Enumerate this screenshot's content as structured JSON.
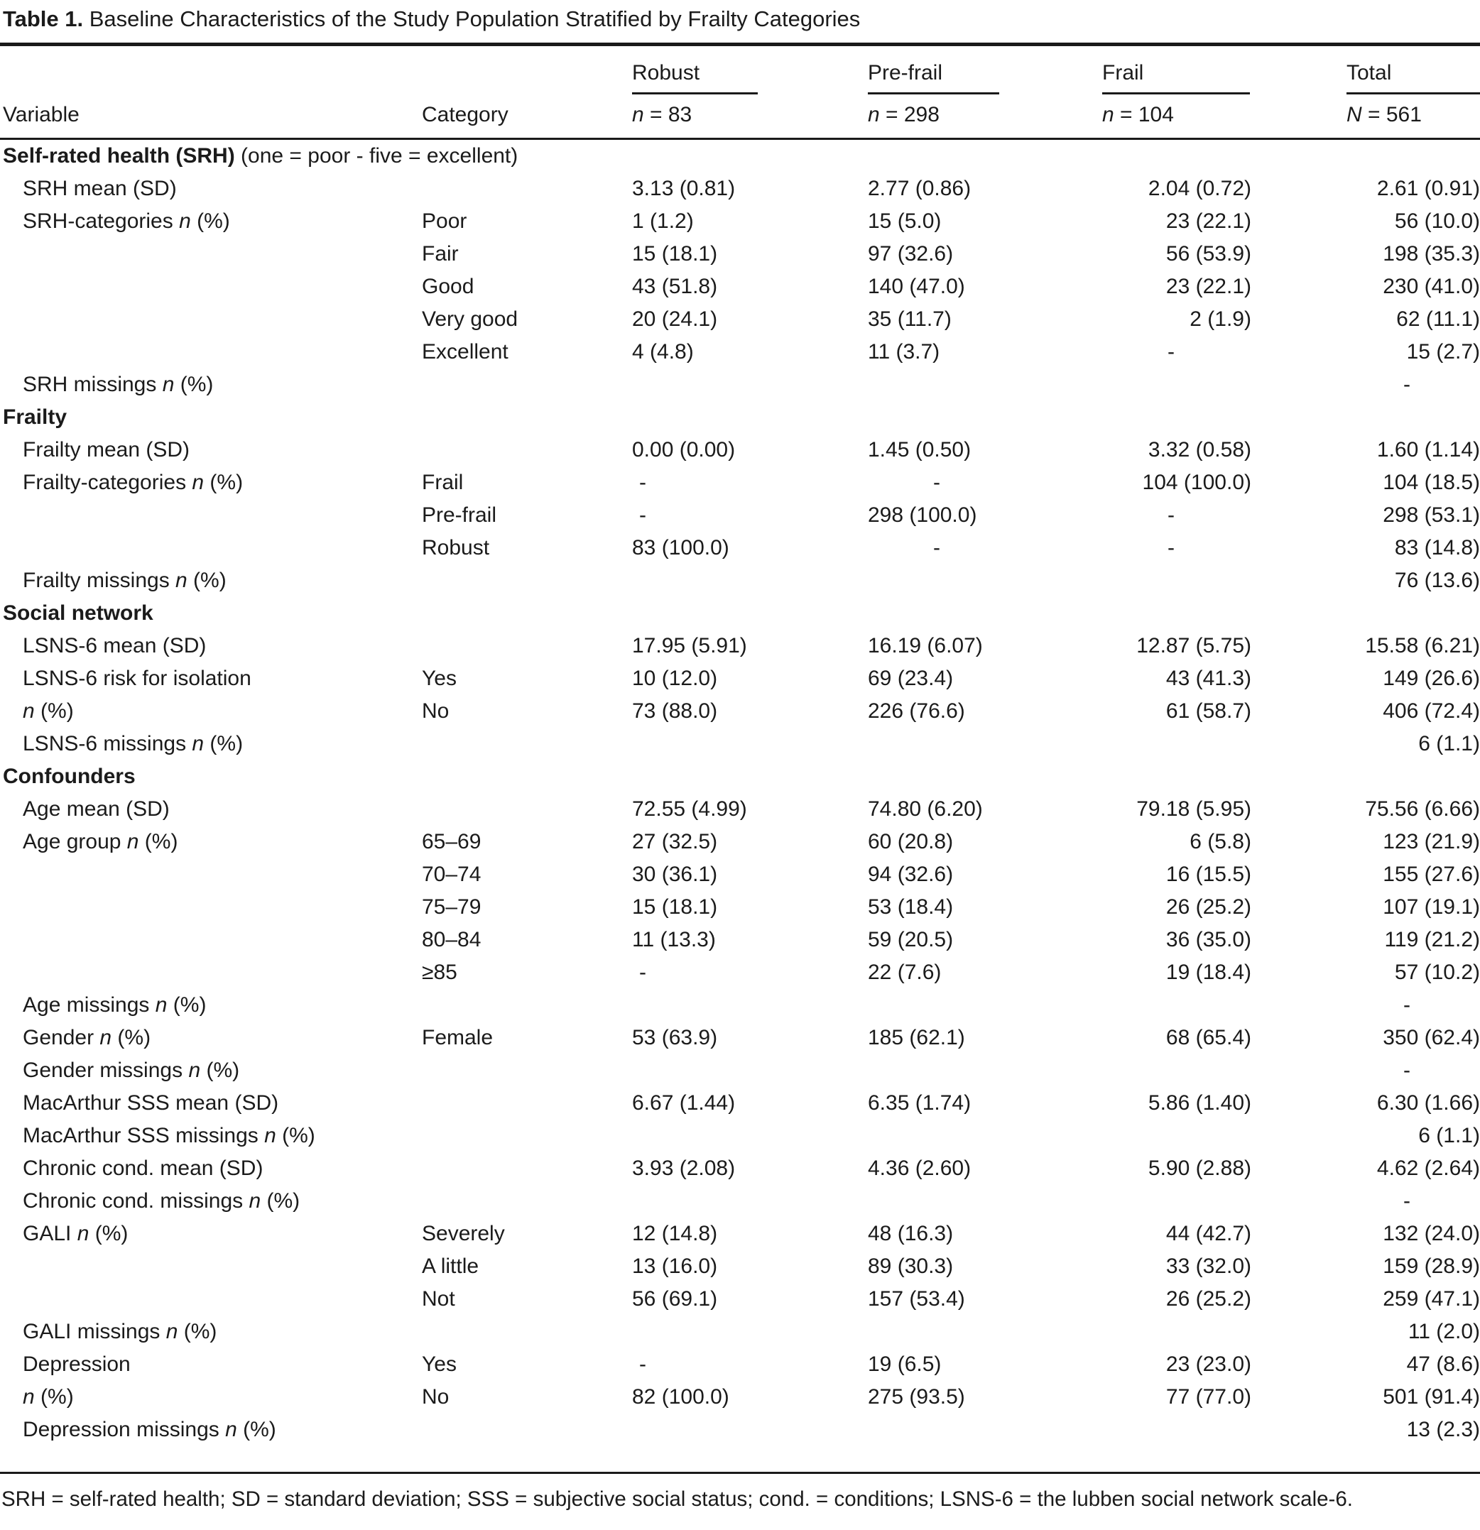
{
  "title": {
    "label": "Table 1.",
    "text": " Baseline Characteristics of the Study Population Stratified by Frailty Categories"
  },
  "table": {
    "col_headers": {
      "variable": "Variable",
      "category": "Category"
    },
    "group_headers": [
      {
        "label": "Robust",
        "n": "n = 83"
      },
      {
        "label": "Pre-frail",
        "n": "n = 298"
      },
      {
        "label": "Frail",
        "n": "n = 104"
      },
      {
        "label": "Total",
        "n": "N = 561"
      }
    ],
    "rows": [
      {
        "type": "section",
        "label": "Self-rated health (SRH)",
        "suffix": " (one = poor - five = excellent)"
      },
      {
        "type": "data",
        "variable": "SRH mean (SD)",
        "category": "",
        "values": [
          "3.13 (0.81)",
          "2.77 (0.86)",
          "2.04 (0.72)",
          "2.61 (0.91)"
        ]
      },
      {
        "type": "data",
        "variable": "SRH-categories n (%)",
        "category": "Poor",
        "values": [
          "1 (1.2)",
          "15 (5.0)",
          "23 (22.1)",
          "56 (10.0)"
        ]
      },
      {
        "type": "data",
        "variable": "",
        "category": "Fair",
        "values": [
          "15 (18.1)",
          "97 (32.6)",
          "56 (53.9)",
          "198 (35.3)"
        ]
      },
      {
        "type": "data",
        "variable": "",
        "category": "Good",
        "values": [
          "43 (51.8)",
          "140 (47.0)",
          "23 (22.1)",
          "230 (41.0)"
        ]
      },
      {
        "type": "data",
        "variable": "",
        "category": "Very good",
        "values": [
          "20 (24.1)",
          "35 (11.7)",
          "2 (1.9)",
          "62 (11.1)"
        ]
      },
      {
        "type": "data",
        "variable": "",
        "category": "Excellent",
        "values": [
          "4 (4.8)",
          "11 (3.7)",
          "-",
          "15 (2.7)"
        ]
      },
      {
        "type": "data",
        "variable": "SRH missings n (%)",
        "category": "",
        "values": [
          "",
          "",
          "",
          "-"
        ]
      },
      {
        "type": "section",
        "label": "Frailty",
        "suffix": ""
      },
      {
        "type": "data",
        "variable": "Frailty mean (SD)",
        "category": "",
        "values": [
          "0.00 (0.00)",
          "1.45 (0.50)",
          "3.32 (0.58)",
          "1.60 (1.14)"
        ]
      },
      {
        "type": "data",
        "variable": "Frailty-categories n (%)",
        "category": "Frail",
        "values": [
          "-",
          "-",
          "104 (100.0)",
          "104 (18.5)"
        ]
      },
      {
        "type": "data",
        "variable": "",
        "category": "Pre-frail",
        "values": [
          "-",
          "298 (100.0)",
          "-",
          "298 (53.1)"
        ]
      },
      {
        "type": "data",
        "variable": "",
        "category": "Robust",
        "values": [
          "83 (100.0)",
          "-",
          "-",
          "83 (14.8)"
        ]
      },
      {
        "type": "data",
        "variable": "Frailty missings n (%)",
        "category": "",
        "values": [
          "",
          "",
          "",
          "76 (13.6)"
        ]
      },
      {
        "type": "section",
        "label": "Social network",
        "suffix": ""
      },
      {
        "type": "data",
        "variable": "LSNS-6 mean (SD)",
        "category": "",
        "values": [
          "17.95 (5.91)",
          "16.19 (6.07)",
          "12.87 (5.75)",
          "15.58 (6.21)"
        ]
      },
      {
        "type": "data",
        "variable": "LSNS-6 risk for isolation",
        "category": "Yes",
        "values": [
          "10 (12.0)",
          "69 (23.4)",
          "43 (41.3)",
          "149 (26.6)"
        ]
      },
      {
        "type": "data",
        "variable": "n (%)",
        "category": "No",
        "values": [
          "73 (88.0)",
          "226 (76.6)",
          "61 (58.7)",
          "406 (72.4)"
        ]
      },
      {
        "type": "data",
        "variable": "LSNS-6 missings n (%)",
        "category": "",
        "values": [
          "",
          "",
          "",
          "6 (1.1)"
        ]
      },
      {
        "type": "section",
        "label": "Confounders",
        "suffix": ""
      },
      {
        "type": "data",
        "variable": "Age mean (SD)",
        "category": "",
        "values": [
          "72.55 (4.99)",
          "74.80 (6.20)",
          "79.18 (5.95)",
          "75.56 (6.66)"
        ]
      },
      {
        "type": "data",
        "variable": "Age group n (%)",
        "category": "65–69",
        "values": [
          "27 (32.5)",
          "60 (20.8)",
          "6 (5.8)",
          "123 (21.9)"
        ]
      },
      {
        "type": "data",
        "variable": "",
        "category": "70–74",
        "values": [
          "30 (36.1)",
          "94 (32.6)",
          "16 (15.5)",
          "155 (27.6)"
        ]
      },
      {
        "type": "data",
        "variable": "",
        "category": "75–79",
        "values": [
          "15 (18.1)",
          "53 (18.4)",
          "26 (25.2)",
          "107 (19.1)"
        ]
      },
      {
        "type": "data",
        "variable": "",
        "category": "80–84",
        "values": [
          "11 (13.3)",
          "59 (20.5)",
          "36 (35.0)",
          "119 (21.2)"
        ]
      },
      {
        "type": "data",
        "variable": "",
        "category": "≥85",
        "values": [
          "-",
          "22 (7.6)",
          "19 (18.4)",
          "57 (10.2)"
        ]
      },
      {
        "type": "data",
        "variable": "Age missings n (%)",
        "category": "",
        "values": [
          "",
          "",
          "",
          "-"
        ]
      },
      {
        "type": "data",
        "variable": "Gender n (%)",
        "category": "Female",
        "values": [
          "53 (63.9)",
          "185 (62.1)",
          "68 (65.4)",
          "350 (62.4)"
        ]
      },
      {
        "type": "data",
        "variable": "Gender missings n (%)",
        "category": "",
        "values": [
          "",
          "",
          "",
          "-"
        ]
      },
      {
        "type": "data",
        "variable": "MacArthur SSS mean (SD)",
        "category": "",
        "values": [
          "6.67 (1.44)",
          "6.35 (1.74)",
          "5.86 (1.40)",
          "6.30 (1.66)"
        ]
      },
      {
        "type": "data",
        "variable": "MacArthur SSS missings n (%)",
        "category": "",
        "values": [
          "",
          "",
          "",
          "6 (1.1)"
        ]
      },
      {
        "type": "data",
        "variable": "Chronic cond. mean (SD)",
        "category": "",
        "values": [
          "3.93 (2.08)",
          "4.36 (2.60)",
          "5.90 (2.88)",
          "4.62 (2.64)"
        ]
      },
      {
        "type": "data",
        "variable": "Chronic cond. missings n (%)",
        "category": "",
        "values": [
          "",
          "",
          "",
          "-"
        ]
      },
      {
        "type": "data",
        "variable": "GALI n (%)",
        "category": "Severely",
        "values": [
          "12 (14.8)",
          "48 (16.3)",
          "44 (42.7)",
          "132 (24.0)"
        ]
      },
      {
        "type": "data",
        "variable": "",
        "category": "A little",
        "values": [
          "13 (16.0)",
          "89 (30.3)",
          "33 (32.0)",
          "159 (28.9)"
        ]
      },
      {
        "type": "data",
        "variable": "",
        "category": "Not",
        "values": [
          "56 (69.1)",
          "157 (53.4)",
          "26 (25.2)",
          "259 (47.1)"
        ]
      },
      {
        "type": "data",
        "variable": "GALI missings n (%)",
        "category": "",
        "values": [
          "",
          "",
          "",
          "11 (2.0)"
        ]
      },
      {
        "type": "data",
        "variable": "Depression",
        "category": "Yes",
        "values": [
          "-",
          "19 (6.5)",
          "23 (23.0)",
          "47 (8.6)"
        ]
      },
      {
        "type": "data",
        "variable": "n (%)",
        "category": "No",
        "values": [
          "82 (100.0)",
          "275 (93.5)",
          "77 (77.0)",
          "501 (91.4)"
        ]
      },
      {
        "type": "data",
        "variable": "Depression missings n (%)",
        "category": "",
        "values": [
          "",
          "",
          "",
          "13 (2.3)"
        ]
      }
    ]
  },
  "footnote": "SRH = self-rated health; SD = standard deviation; SSS = subjective social status; cond. = conditions; LSNS-6 = the lubben social network scale-6."
}
